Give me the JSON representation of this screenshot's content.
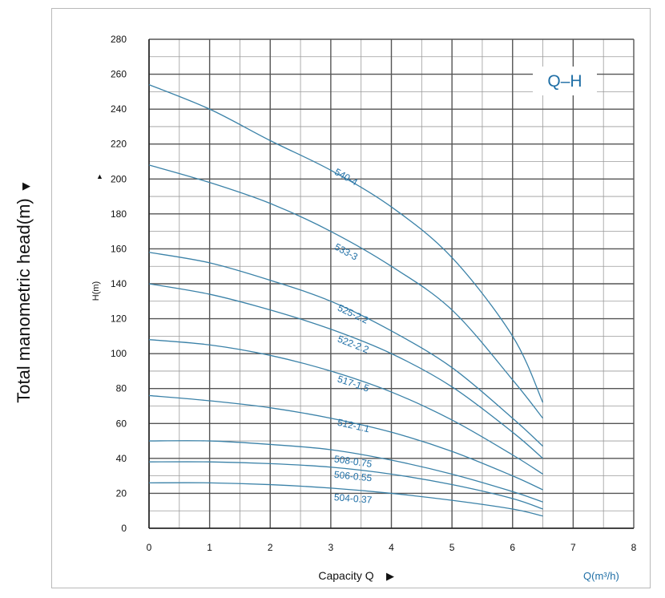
{
  "outer_ylabel": "Total manometric head(m)",
  "outer_ylabel_arrow": "▶",
  "chart_data": {
    "type": "line",
    "title": "Q–H",
    "xlabel": "Capacity Q",
    "xlabel_arrow": "▶",
    "xunit_label": "Q(m³/h)",
    "ylabel": "H(m)",
    "xlim": [
      0,
      8
    ],
    "ylim": [
      0,
      280
    ],
    "xticks": [
      0,
      1,
      2,
      3,
      4,
      5,
      6,
      7,
      8
    ],
    "yticks": [
      0,
      20,
      40,
      60,
      80,
      100,
      120,
      140,
      160,
      180,
      200,
      220,
      240,
      260,
      280
    ],
    "grid": true,
    "line_color": "#3b82a8",
    "label_color": "#1f6fa6",
    "series": [
      {
        "name": "540-4",
        "x": [
          0,
          1,
          2,
          3,
          4,
          5,
          6,
          6.5
        ],
        "y": [
          254,
          240,
          222,
          205,
          184,
          155,
          110,
          72
        ],
        "label_at": [
          3.05,
          203
        ]
      },
      {
        "name": "533-3",
        "x": [
          0,
          1,
          2,
          3,
          4,
          5,
          6,
          6.5
        ],
        "y": [
          208,
          198,
          186,
          170,
          150,
          125,
          85,
          63
        ],
        "label_at": [
          3.05,
          160
        ]
      },
      {
        "name": "525-2.2",
        "x": [
          0,
          1,
          2,
          3,
          4,
          5,
          6,
          6.5
        ],
        "y": [
          158,
          152,
          142,
          130,
          113,
          92,
          63,
          47
        ],
        "label_at": [
          3.1,
          125
        ]
      },
      {
        "name": "522-2.2",
        "x": [
          0,
          1,
          2,
          3,
          4,
          5,
          6,
          6.5
        ],
        "y": [
          140,
          134,
          125,
          114,
          100,
          81,
          55,
          40
        ],
        "label_at": [
          3.1,
          107
        ]
      },
      {
        "name": "517-1.5",
        "x": [
          0,
          1,
          2,
          3,
          4,
          5,
          6,
          6.5
        ],
        "y": [
          108,
          105,
          99,
          90,
          78,
          62,
          42,
          31
        ],
        "label_at": [
          3.1,
          84
        ]
      },
      {
        "name": "512-1.1",
        "x": [
          0,
          1,
          2,
          3,
          4,
          5,
          6,
          6.5
        ],
        "y": [
          76,
          73,
          69,
          63,
          55,
          44,
          30,
          22
        ],
        "label_at": [
          3.1,
          59
        ]
      },
      {
        "name": "508-0.75",
        "x": [
          0,
          1,
          2,
          3,
          4,
          5,
          6,
          6.5
        ],
        "y": [
          50,
          50,
          48,
          45,
          39,
          31,
          21,
          15
        ],
        "label_at": [
          3.05,
          38
        ]
      },
      {
        "name": "506-0.55",
        "x": [
          0,
          1,
          2,
          3,
          4,
          5,
          6,
          6.5
        ],
        "y": [
          38,
          38,
          37,
          35,
          31,
          25,
          17,
          11
        ],
        "label_at": [
          3.05,
          29
        ]
      },
      {
        "name": "504-0.37",
        "x": [
          0,
          1,
          2,
          3,
          4,
          5,
          6,
          6.5
        ],
        "y": [
          26,
          26,
          25,
          23,
          20,
          16,
          11,
          7
        ],
        "label_at": [
          3.05,
          16
        ]
      }
    ]
  }
}
